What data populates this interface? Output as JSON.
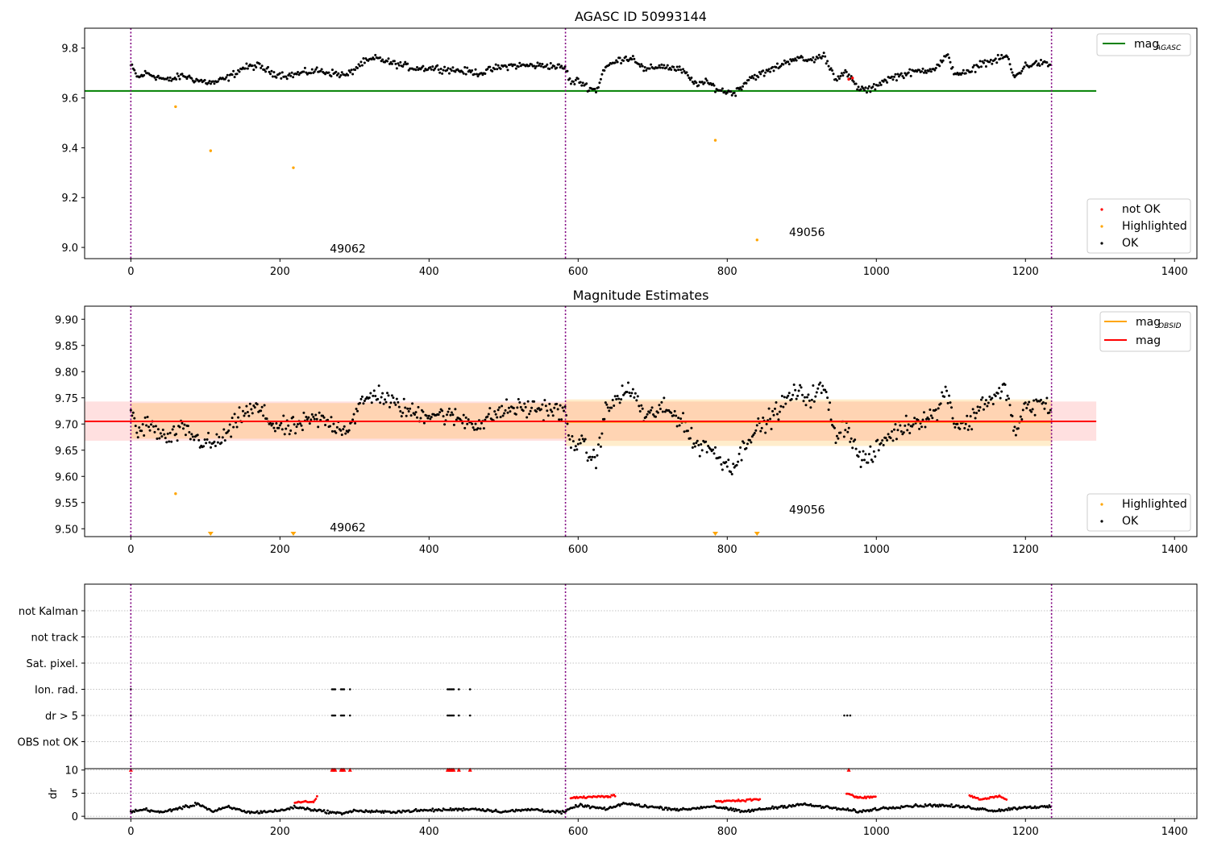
{
  "chart_data": [
    {
      "id": "agasc",
      "type": "scatter",
      "title": "AGASC ID 50993144",
      "xlim": [
        -62,
        1430
      ],
      "ylim": [
        8.955,
        9.88
      ],
      "xticks": [
        0,
        200,
        400,
        600,
        800,
        1000,
        1200,
        1400
      ],
      "yticks": [
        9.0,
        9.2,
        9.4,
        9.6,
        9.8
      ],
      "obs_boundaries": [
        0,
        583,
        1235
      ],
      "obs_labels": [
        {
          "x": 267,
          "y": 8.98,
          "text": "49062"
        },
        {
          "x": 883,
          "y": 9.045,
          "text": "49056"
        }
      ],
      "reference_line": {
        "name": "mag_AGASC",
        "y": 9.628,
        "x_range": [
          0,
          1295
        ],
        "color": "#008000"
      },
      "ok_series": {
        "name": "OK",
        "color": "#000000",
        "curve": [
          [
            0,
            9.73
          ],
          [
            10,
            9.68
          ],
          [
            20,
            9.7
          ],
          [
            30,
            9.69
          ],
          [
            50,
            9.67
          ],
          [
            70,
            9.69
          ],
          [
            90,
            9.67
          ],
          [
            110,
            9.66
          ],
          [
            130,
            9.68
          ],
          [
            150,
            9.72
          ],
          [
            170,
            9.73
          ],
          [
            190,
            9.7
          ],
          [
            210,
            9.69
          ],
          [
            230,
            9.7
          ],
          [
            250,
            9.71
          ],
          [
            270,
            9.7
          ],
          [
            290,
            9.69
          ],
          [
            310,
            9.74
          ],
          [
            330,
            9.76
          ],
          [
            350,
            9.74
          ],
          [
            380,
            9.72
          ],
          [
            410,
            9.72
          ],
          [
            440,
            9.71
          ],
          [
            470,
            9.7
          ],
          [
            490,
            9.72
          ],
          [
            510,
            9.73
          ],
          [
            540,
            9.73
          ],
          [
            560,
            9.73
          ],
          [
            583,
            9.72
          ],
          [
            590,
            9.66
          ],
          [
            600,
            9.67
          ],
          [
            615,
            9.64
          ],
          [
            625,
            9.63
          ],
          [
            635,
            9.72
          ],
          [
            660,
            9.76
          ],
          [
            675,
            9.76
          ],
          [
            690,
            9.71
          ],
          [
            710,
            9.73
          ],
          [
            740,
            9.71
          ],
          [
            755,
            9.66
          ],
          [
            775,
            9.66
          ],
          [
            790,
            9.63
          ],
          [
            810,
            9.62
          ],
          [
            830,
            9.68
          ],
          [
            850,
            9.7
          ],
          [
            870,
            9.73
          ],
          [
            890,
            9.76
          ],
          [
            910,
            9.75
          ],
          [
            930,
            9.77
          ],
          [
            945,
            9.68
          ],
          [
            960,
            9.7
          ],
          [
            975,
            9.64
          ],
          [
            990,
            9.63
          ],
          [
            1010,
            9.67
          ],
          [
            1030,
            9.69
          ],
          [
            1060,
            9.71
          ],
          [
            1080,
            9.72
          ],
          [
            1095,
            9.77
          ],
          [
            1105,
            9.7
          ],
          [
            1125,
            9.7
          ],
          [
            1140,
            9.74
          ],
          [
            1160,
            9.75
          ],
          [
            1175,
            9.77
          ],
          [
            1185,
            9.68
          ],
          [
            1200,
            9.73
          ],
          [
            1220,
            9.74
          ],
          [
            1235,
            9.73
          ]
        ],
        "spread": 0.012
      },
      "highlighted": {
        "name": "Highlighted",
        "color": "#ffa500",
        "points": [
          [
            60,
            9.565
          ],
          [
            107,
            9.388
          ],
          [
            218,
            9.32
          ],
          [
            784,
            9.43
          ],
          [
            840,
            9.03
          ]
        ]
      },
      "not_ok": {
        "name": "not OK",
        "color": "#ff0000",
        "points": [
          [
            963,
            9.675
          ],
          [
            968,
            9.68
          ]
        ]
      },
      "legend_upper": [
        {
          "label": "mag",
          "sub": "AGASC",
          "kind": "line",
          "color": "#008000"
        }
      ],
      "legend_lower": [
        {
          "label": "not OK",
          "kind": "dot",
          "color": "#ff0000"
        },
        {
          "label": "Highlighted",
          "kind": "dot",
          "color": "#ffa500"
        },
        {
          "label": "OK",
          "kind": "dot",
          "color": "#000000"
        }
      ]
    },
    {
      "id": "estimates",
      "type": "scatter",
      "title": "Magnitude Estimates",
      "xlim": [
        -62,
        1430
      ],
      "ylim": [
        9.485,
        9.925
      ],
      "xticks": [
        0,
        200,
        400,
        600,
        800,
        1000,
        1200,
        1400
      ],
      "yticks": [
        9.5,
        9.55,
        9.6,
        9.65,
        9.7,
        9.75,
        9.8,
        9.85,
        9.9
      ],
      "obs_boundaries": [
        0,
        583,
        1235
      ],
      "obs_labels": [
        {
          "x": 267,
          "y": 9.495,
          "text": "49062"
        },
        {
          "x": 883,
          "y": 9.529,
          "text": "49056"
        }
      ],
      "mag_line": {
        "name": "mag",
        "y": 9.705,
        "x_range": [
          0,
          1295
        ],
        "color": "#ff0000",
        "band": [
          9.668,
          9.743
        ]
      },
      "obsid_mag": [
        {
          "x_range": [
            0,
            583
          ],
          "y": 9.705,
          "band": [
            9.672,
            9.74
          ]
        },
        {
          "x_range": [
            583,
            1235
          ],
          "y": 9.704,
          "band": [
            9.658,
            9.747
          ]
        }
      ],
      "ok_series": {
        "name": "OK",
        "color": "#000000",
        "spread": 0.016
      },
      "highlighted": {
        "name": "Highlighted",
        "color": "#ffa500",
        "points": [
          [
            60,
            9.567
          ]
        ],
        "off_scale_x": [
          107,
          218,
          784,
          840
        ]
      },
      "legend_upper": [
        {
          "label": "mag",
          "sub": "OBSID",
          "kind": "line",
          "color": "#ffa500"
        },
        {
          "label": "mag",
          "kind": "line",
          "color": "#ff0000"
        }
      ],
      "legend_lower": [
        {
          "label": "Highlighted",
          "kind": "dot",
          "color": "#ffa500"
        },
        {
          "label": "OK",
          "kind": "dot",
          "color": "#000000"
        }
      ]
    },
    {
      "id": "flags",
      "type": "scatter",
      "xlim": [
        -62,
        1430
      ],
      "xticks": [
        0,
        200,
        400,
        600,
        800,
        1000,
        1200,
        1400
      ],
      "obs_boundaries": [
        0,
        583,
        1235
      ],
      "flag_rows": [
        "not Kalman",
        "not track",
        "Sat. pixel.",
        "Ion. rad.",
        "dr > 5",
        "OBS not OK"
      ],
      "flag_points": {
        "Ion. rad.": [
          0,
          270,
          272,
          274,
          282,
          284,
          286,
          294,
          425,
          427,
          429,
          431,
          433,
          440,
          455
        ],
        "dr > 5": [
          0,
          270,
          272,
          274,
          282,
          284,
          286,
          294,
          425,
          427,
          429,
          431,
          433,
          440,
          455,
          957,
          961,
          965
        ]
      },
      "dr": {
        "ylabel": "dr",
        "ylim": [
          -0.5,
          10.3
        ],
        "yticks": [
          0,
          5,
          10
        ],
        "clip": 10,
        "ok_curve": [
          [
            0,
            1.0
          ],
          [
            20,
            1.5
          ],
          [
            40,
            0.8
          ],
          [
            60,
            1.6
          ],
          [
            80,
            2.2
          ],
          [
            90,
            2.8
          ],
          [
            110,
            1.0
          ],
          [
            130,
            2.0
          ],
          [
            160,
            0.8
          ],
          [
            200,
            1.2
          ],
          [
            220,
            2.0
          ],
          [
            250,
            1.3
          ],
          [
            280,
            0.6
          ],
          [
            300,
            1.2
          ],
          [
            340,
            0.9
          ],
          [
            380,
            1.2
          ],
          [
            420,
            1.4
          ],
          [
            460,
            1.6
          ],
          [
            500,
            1.0
          ],
          [
            540,
            1.5
          ],
          [
            580,
            0.8
          ],
          [
            600,
            2.4
          ],
          [
            640,
            1.5
          ],
          [
            660,
            2.8
          ],
          [
            700,
            2.0
          ],
          [
            740,
            1.4
          ],
          [
            780,
            2.2
          ],
          [
            820,
            1.0
          ],
          [
            860,
            1.8
          ],
          [
            900,
            2.6
          ],
          [
            940,
            1.8
          ],
          [
            980,
            1.0
          ],
          [
            1000,
            1.6
          ],
          [
            1040,
            2.2
          ],
          [
            1080,
            2.4
          ],
          [
            1120,
            2.0
          ],
          [
            1160,
            1.2
          ],
          [
            1200,
            2.0
          ],
          [
            1235,
            2.0
          ]
        ],
        "bad_curve": [
          [
            220,
            3.0
          ],
          [
            245,
            3.2
          ],
          [
            250,
            4.2
          ],
          [
            590,
            4.0
          ],
          [
            640,
            4.3
          ],
          [
            650,
            4.5
          ],
          [
            785,
            3.3
          ],
          [
            815,
            3.4
          ],
          [
            845,
            3.7
          ],
          [
            960,
            5.0
          ],
          [
            975,
            4.0
          ],
          [
            1000,
            4.2
          ],
          [
            1125,
            4.5
          ],
          [
            1140,
            3.6
          ],
          [
            1165,
            4.4
          ],
          [
            1175,
            3.5
          ]
        ],
        "clipped": [
          0,
          270,
          272,
          274,
          282,
          284,
          286,
          294,
          425,
          427,
          429,
          431,
          433,
          440,
          455,
          963
        ]
      }
    }
  ]
}
